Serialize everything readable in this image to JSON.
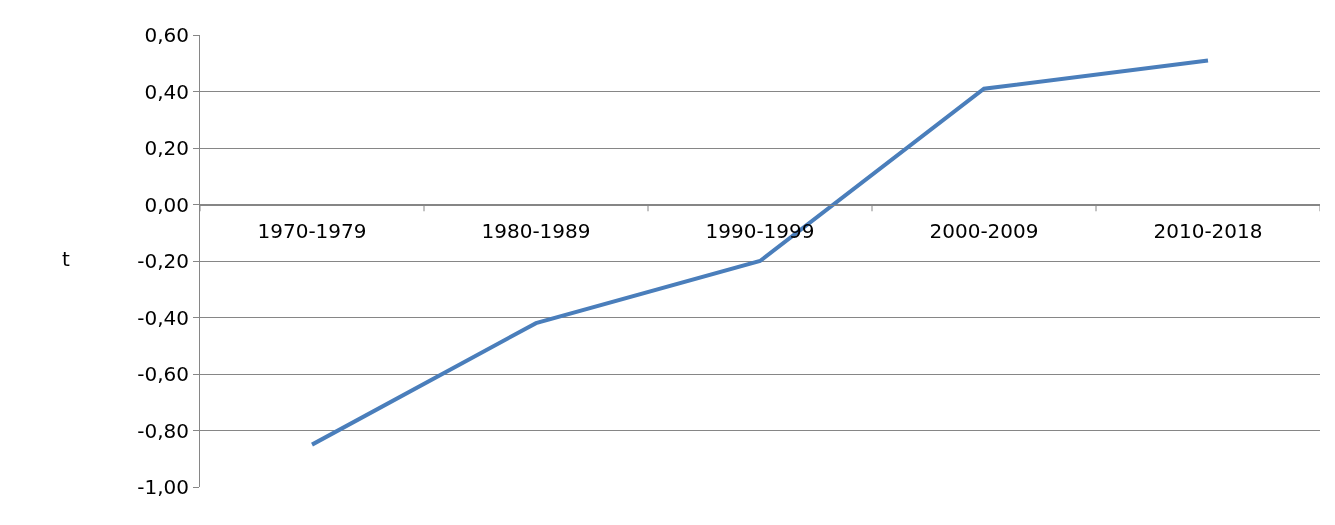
{
  "chart_data": {
    "type": "line",
    "ylabel": "t",
    "categories": [
      "1970-1979",
      "1980-1989",
      "1990-1999",
      "2000-2009",
      "2010-2018"
    ],
    "series": [
      {
        "color": "#4a7ebb",
        "values": [
          -0.85,
          -0.42,
          -0.2,
          0.41,
          0.51
        ]
      }
    ],
    "ylim": [
      -1.0,
      0.6
    ],
    "yticks": [
      {
        "value": -1.0,
        "label": "-1,00"
      },
      {
        "value": -0.8,
        "label": "-0,80"
      },
      {
        "value": -0.6,
        "label": "-0,60"
      },
      {
        "value": -0.4,
        "label": "-0,40"
      },
      {
        "value": -0.2,
        "label": "-0,20"
      },
      {
        "value": 0.0,
        "label": "0,00"
      },
      {
        "value": 0.2,
        "label": "0,20"
      },
      {
        "value": 0.4,
        "label": "0,40"
      },
      {
        "value": 0.6,
        "label": "0,60"
      }
    ],
    "grid": "y",
    "marker": "none",
    "line_style": "solid"
  }
}
